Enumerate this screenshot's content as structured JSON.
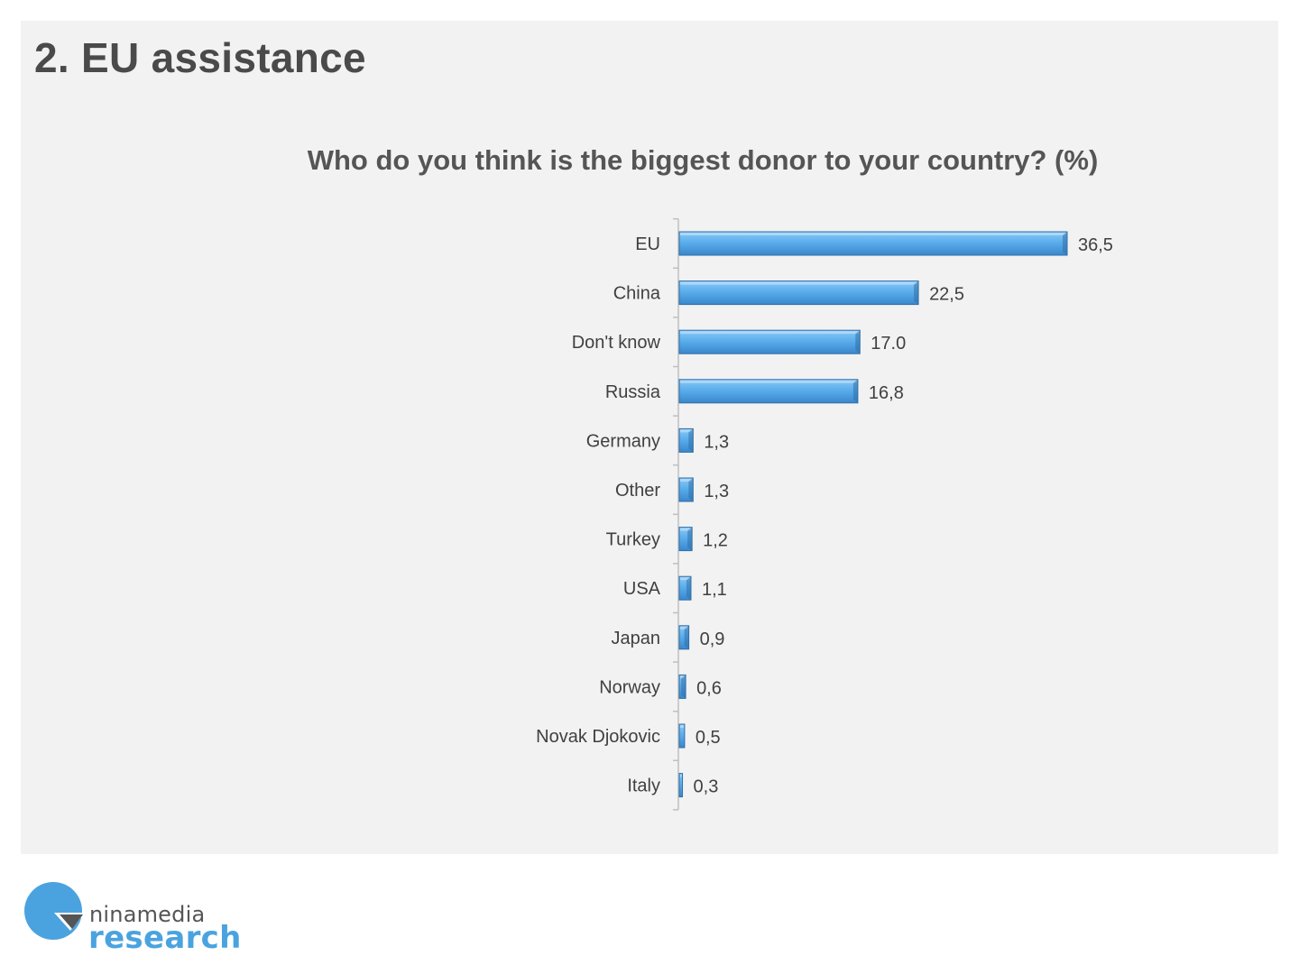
{
  "slide": {
    "title": "2. EU assistance"
  },
  "chart_data": {
    "type": "bar",
    "orientation": "horizontal",
    "title": "Who do you think is the biggest donor to your country? (%)",
    "categories": [
      "EU",
      "China",
      "Don't know",
      "Russia",
      "Germany",
      "Other",
      "Turkey",
      "USA",
      "Japan",
      "Norway",
      "Novak Djokovic",
      "Italy"
    ],
    "values": [
      36.5,
      22.5,
      17.0,
      16.8,
      1.3,
      1.3,
      1.2,
      1.1,
      0.9,
      0.6,
      0.5,
      0.3
    ],
    "data_labels": [
      "36,5",
      "22,5",
      "17.0",
      "16,8",
      "1,3",
      "1,3",
      "1,2",
      "1,1",
      "0,9",
      "0,6",
      "0,5",
      "0,3"
    ],
    "xlim": [
      0,
      40
    ],
    "grid": false,
    "legend": "none",
    "bar_color": "#4fa3e8",
    "bar_edge_color": "#2f6fa8"
  },
  "logo": {
    "line1": "ninamedia",
    "line2": "research",
    "circle_color": "#4aa3df",
    "mark_color": "#555555"
  }
}
